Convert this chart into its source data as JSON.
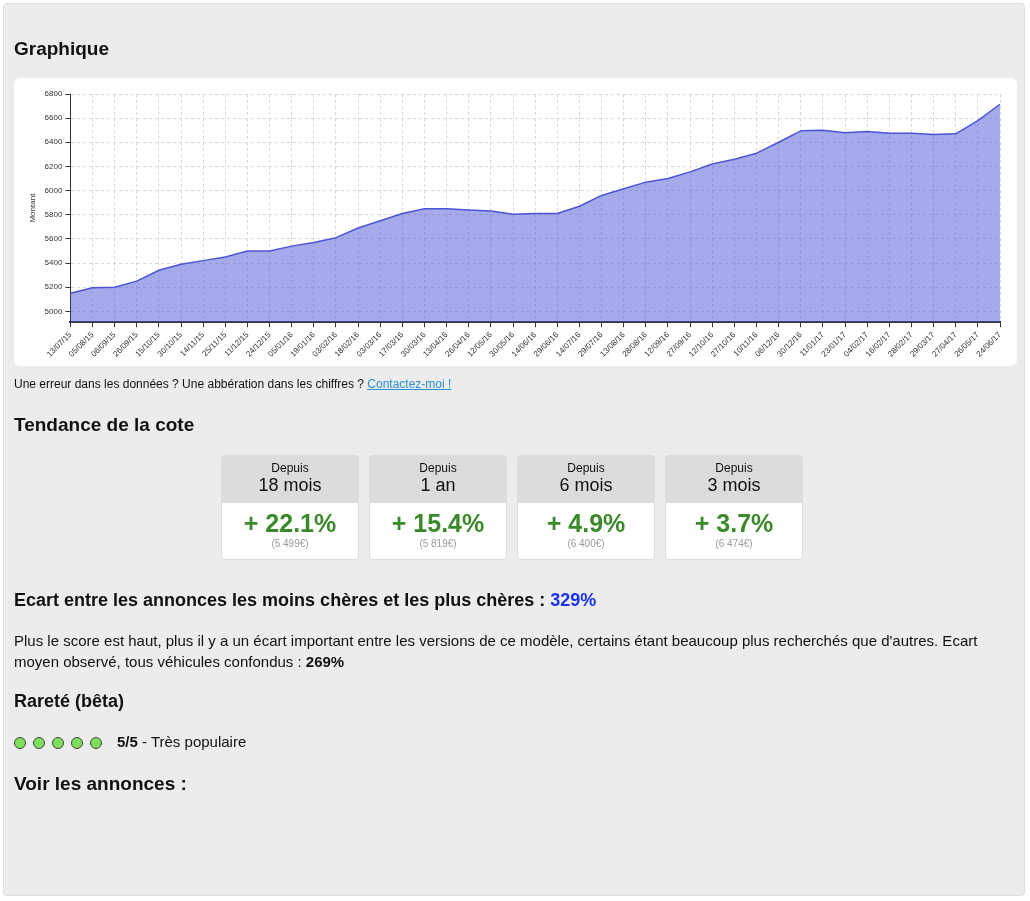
{
  "chart_data": {
    "type": "area",
    "title": "Graphique",
    "ylabel": "Montant",
    "categories": [
      "13/07/15",
      "05/08/15",
      "06/09/15",
      "26/09/15",
      "15/10/15",
      "30/10/15",
      "14/11/15",
      "25/11/15",
      "11/12/15",
      "24/12/15",
      "05/01/16",
      "19/01/16",
      "03/02/16",
      "18/02/16",
      "03/03/16",
      "17/03/16",
      "30/03/16",
      "13/04/16",
      "26/04/16",
      "12/05/16",
      "30/05/16",
      "14/06/16",
      "29/06/16",
      "14/07/16",
      "29/07/16",
      "13/08/16",
      "28/08/16",
      "12/09/16",
      "27/09/16",
      "12/10/16",
      "27/10/16",
      "10/11/16",
      "06/12/16",
      "30/12/16",
      "11/01/17",
      "23/01/17",
      "04/02/17",
      "16/02/17",
      "28/02/17",
      "29/03/17",
      "27/04/17",
      "26/05/17",
      "24/06/17"
    ],
    "series": [
      {
        "color": "#4a55d6",
        "values": [
          5150,
          5195,
          5200,
          5250,
          5340,
          5390,
          5420,
          5450,
          5500,
          5500,
          5540,
          5570,
          5610,
          5690,
          5750,
          5810,
          5850,
          5850,
          5840,
          5830,
          5805,
          5810,
          5810,
          5870,
          5960,
          6015,
          6070,
          6100,
          6155,
          6220,
          6260,
          6310,
          6400,
          6495,
          6500,
          6480,
          6490,
          6475,
          6475,
          6465,
          6470,
          6580,
          6715
        ]
      }
    ],
    "ylim": [
      4910,
      6800
    ],
    "yticks": [
      5000,
      5200,
      5400,
      5600,
      5800,
      6000,
      6200,
      6400,
      6600,
      6800
    ],
    "grid": true,
    "marker": "none",
    "legend": false,
    "annotations": [
      "Une erreur dans les données ? Une abbération dans les chiffres ?",
      "Contactez-moi !",
      "Tendance de la cote",
      "Depuis",
      "18 mois",
      "+ 22.1%",
      "(5 499€)",
      "Depuis",
      "1 an",
      "+ 15.4%",
      "(5 819€)",
      "Depuis",
      "6 mois",
      "+ 4.9%",
      "(6 400€)",
      "Depuis",
      "3 mois",
      "+ 3.7%",
      "(6 474€)",
      "Ecart entre les annonces les moins chères et les plus chères :",
      "329%",
      "Plus le score est haut, plus il y a un écart important entre les versions de ce modèle, certains étant beaucoup plus recherchés que d'autres. Ecart moyen observé, tous véhicules confondus :",
      "269%",
      "Rareté (bêta)",
      "5/5",
      "- Très populaire",
      "Voir les annonces :"
    ]
  }
}
